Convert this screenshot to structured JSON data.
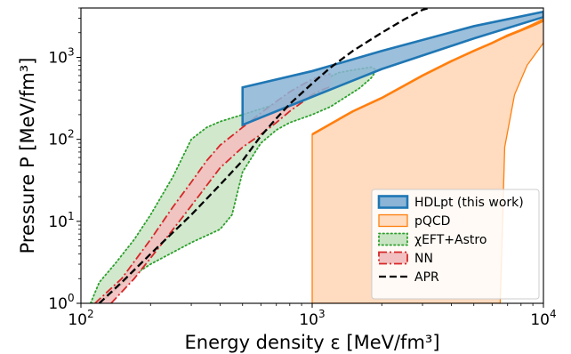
{
  "chart_data": {
    "type": "area",
    "x_scale": "log",
    "y_scale": "log",
    "xlim": [
      100,
      10000
    ],
    "ylim": [
      1,
      4000
    ],
    "xlabel": "Energy density ε [MeV/fm³]",
    "ylabel": "Pressure P [MeV/fm³]",
    "x_ticks": [
      {
        "value": 100,
        "base": "10",
        "exp": "2"
      },
      {
        "value": 1000,
        "base": "10",
        "exp": "3"
      },
      {
        "value": 10000,
        "base": "10",
        "exp": "4"
      }
    ],
    "y_ticks": [
      {
        "value": 1,
        "base": "10",
        "exp": "0"
      },
      {
        "value": 10,
        "base": "10",
        "exp": "1"
      },
      {
        "value": 100,
        "base": "10",
        "exp": "2"
      },
      {
        "value": 1000,
        "base": "10",
        "exp": "3"
      }
    ],
    "series": [
      {
        "name": "pQCD",
        "kind": "band",
        "color": "#ff7f0e",
        "fill": "#ffdbbf",
        "lower": [
          [
            1000,
            1
          ],
          [
            6500,
            1
          ],
          [
            6600,
            4
          ],
          [
            6800,
            80
          ],
          [
            7500,
            350
          ],
          [
            8500,
            800
          ],
          [
            10000,
            1500
          ]
        ],
        "upper": [
          [
            1000,
            115
          ],
          [
            1500,
            220
          ],
          [
            2000,
            320
          ],
          [
            3000,
            600
          ],
          [
            4000,
            900
          ],
          [
            5000,
            1200
          ],
          [
            6000,
            1500
          ],
          [
            7000,
            1800
          ],
          [
            8000,
            2100
          ],
          [
            9000,
            2400
          ],
          [
            10000,
            2750
          ]
        ],
        "thick": [
          [
            1000,
            115
          ],
          [
            1500,
            220
          ],
          [
            2000,
            320
          ],
          [
            3000,
            600
          ],
          [
            4000,
            900
          ],
          [
            5000,
            1200
          ],
          [
            6000,
            1500
          ],
          [
            7000,
            1850
          ],
          [
            8000,
            2150
          ],
          [
            9000,
            2500
          ],
          [
            10000,
            2900
          ]
        ]
      },
      {
        "name": "χEFT+Astro",
        "kind": "band",
        "color": "#2ca02c",
        "fill": "#c9e4c3",
        "boundary": [
          [
            110,
            1
          ],
          [
            120,
            1.8
          ],
          [
            140,
            3
          ],
          [
            170,
            6
          ],
          [
            200,
            12
          ],
          [
            250,
            35
          ],
          [
            300,
            100
          ],
          [
            350,
            140
          ],
          [
            400,
            165
          ],
          [
            500,
            200
          ],
          [
            700,
            270
          ],
          [
            900,
            380
          ],
          [
            1100,
            520
          ],
          [
            1300,
            650
          ],
          [
            1500,
            700
          ],
          [
            1800,
            760
          ],
          [
            1900,
            700
          ],
          [
            1800,
            560
          ],
          [
            1600,
            420
          ],
          [
            1400,
            330
          ],
          [
            1200,
            250
          ],
          [
            1000,
            200
          ],
          [
            800,
            160
          ],
          [
            700,
            130
          ],
          [
            600,
            90
          ],
          [
            500,
            40
          ],
          [
            450,
            12
          ],
          [
            400,
            8
          ],
          [
            300,
            5.5
          ],
          [
            200,
            3
          ],
          [
            160,
            2
          ],
          [
            130,
            1.2
          ],
          [
            120,
            1
          ]
        ]
      },
      {
        "name": "NN",
        "kind": "band",
        "color": "#d62728",
        "fill": "#f2c0c0",
        "upper": [
          [
            115,
            1
          ],
          [
            150,
            2
          ],
          [
            200,
            6
          ],
          [
            250,
            15
          ],
          [
            300,
            30
          ],
          [
            350,
            55
          ],
          [
            400,
            85
          ],
          [
            500,
            140
          ],
          [
            600,
            210
          ],
          [
            700,
            290
          ],
          [
            800,
            380
          ],
          [
            900,
            460
          ],
          [
            1000,
            540
          ],
          [
            1100,
            590
          ],
          [
            1200,
            630
          ]
        ],
        "lower": [
          [
            135,
            1
          ],
          [
            170,
            2
          ],
          [
            220,
            5
          ],
          [
            280,
            12
          ],
          [
            330,
            22
          ],
          [
            400,
            45
          ],
          [
            500,
            80
          ],
          [
            600,
            115
          ],
          [
            700,
            160
          ],
          [
            800,
            220
          ],
          [
            900,
            280
          ],
          [
            1000,
            350
          ],
          [
            1100,
            400
          ],
          [
            1200,
            440
          ]
        ]
      },
      {
        "name": "HDLpt (this work)",
        "kind": "band",
        "color": "#1f77b4",
        "fill": "#8bb4d6",
        "boundary": [
          [
            500,
            430
          ],
          [
            1000,
            680
          ],
          [
            2000,
            1200
          ],
          [
            5000,
            2400
          ],
          [
            10000,
            3600
          ],
          [
            10000,
            3100
          ],
          [
            5000,
            1700
          ],
          [
            2000,
            720
          ],
          [
            1000,
            330
          ],
          [
            500,
            150
          ]
        ]
      },
      {
        "name": "APR",
        "kind": "line",
        "color": "#000000",
        "points": [
          [
            120,
            1
          ],
          [
            150,
            1.8
          ],
          [
            200,
            4
          ],
          [
            300,
            12
          ],
          [
            400,
            28
          ],
          [
            500,
            55
          ],
          [
            600,
            110
          ],
          [
            700,
            180
          ],
          [
            800,
            270
          ],
          [
            1000,
            480
          ],
          [
            1200,
            750
          ],
          [
            1500,
            1200
          ],
          [
            2000,
            2000
          ],
          [
            2500,
            2900
          ],
          [
            3000,
            3800
          ],
          [
            3200,
            4000
          ]
        ]
      }
    ],
    "legend": {
      "position": "lower right",
      "entries": [
        {
          "label": "HDLpt (this work)",
          "style": "blue-band"
        },
        {
          "label": "pQCD",
          "style": "orange-band"
        },
        {
          "label": "χEFT+Astro",
          "style": "green-band"
        },
        {
          "label": "NN",
          "style": "red-band"
        },
        {
          "label": "APR",
          "style": "dashed-line"
        }
      ]
    }
  }
}
